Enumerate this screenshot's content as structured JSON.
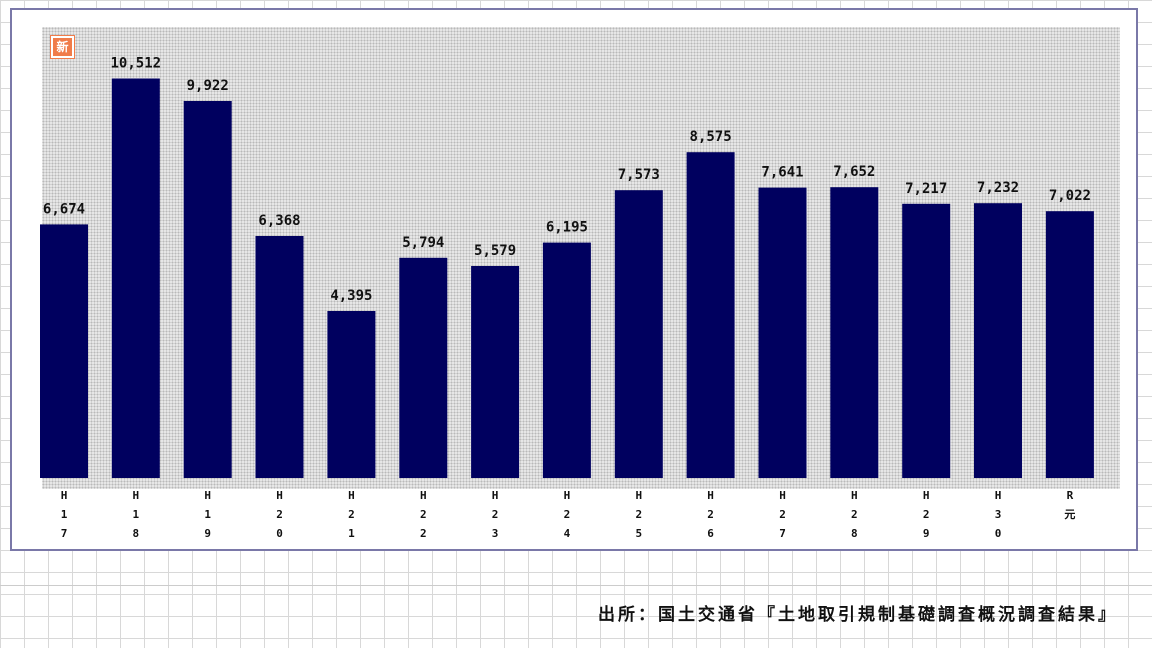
{
  "badge": {
    "text": "新"
  },
  "source": "出所：国土交通省『土地取引規制基礎調査概況調査結果』",
  "colors": {
    "bar": "#00005f",
    "frame": "#7a78a8",
    "badge": "#f07c4a"
  },
  "chart_data": {
    "type": "bar",
    "categories": [
      "H17",
      "H18",
      "H19",
      "H20",
      "H21",
      "H22",
      "H23",
      "H24",
      "H25",
      "H26",
      "H27",
      "H28",
      "H29",
      "H30",
      "R元"
    ],
    "tick_labels": [
      [
        "H",
        "1",
        "7"
      ],
      [
        "H",
        "1",
        "8"
      ],
      [
        "H",
        "1",
        "9"
      ],
      [
        "H",
        "2",
        "0"
      ],
      [
        "H",
        "2",
        "1"
      ],
      [
        "H",
        "2",
        "2"
      ],
      [
        "H",
        "2",
        "3"
      ],
      [
        "H",
        "2",
        "4"
      ],
      [
        "H",
        "2",
        "5"
      ],
      [
        "H",
        "2",
        "6"
      ],
      [
        "H",
        "2",
        "7"
      ],
      [
        "H",
        "2",
        "8"
      ],
      [
        "H",
        "2",
        "9"
      ],
      [
        "H",
        "3",
        "0"
      ],
      [
        "R",
        "元"
      ]
    ],
    "values": [
      6674,
      10512,
      9922,
      6368,
      4395,
      5794,
      5579,
      6195,
      7573,
      8575,
      7641,
      7652,
      7217,
      7232,
      7022
    ],
    "value_labels": [
      "6,674",
      "10,512",
      "9,922",
      "6,368",
      "4,395",
      "5,794",
      "5,579",
      "6,195",
      "7,573",
      "8,575",
      "7,641",
      "7,652",
      "7,217",
      "7,232",
      "7,022"
    ],
    "title": "",
    "xlabel": "",
    "ylabel": "",
    "ylim": [
      0,
      11000
    ],
    "grid": false
  }
}
